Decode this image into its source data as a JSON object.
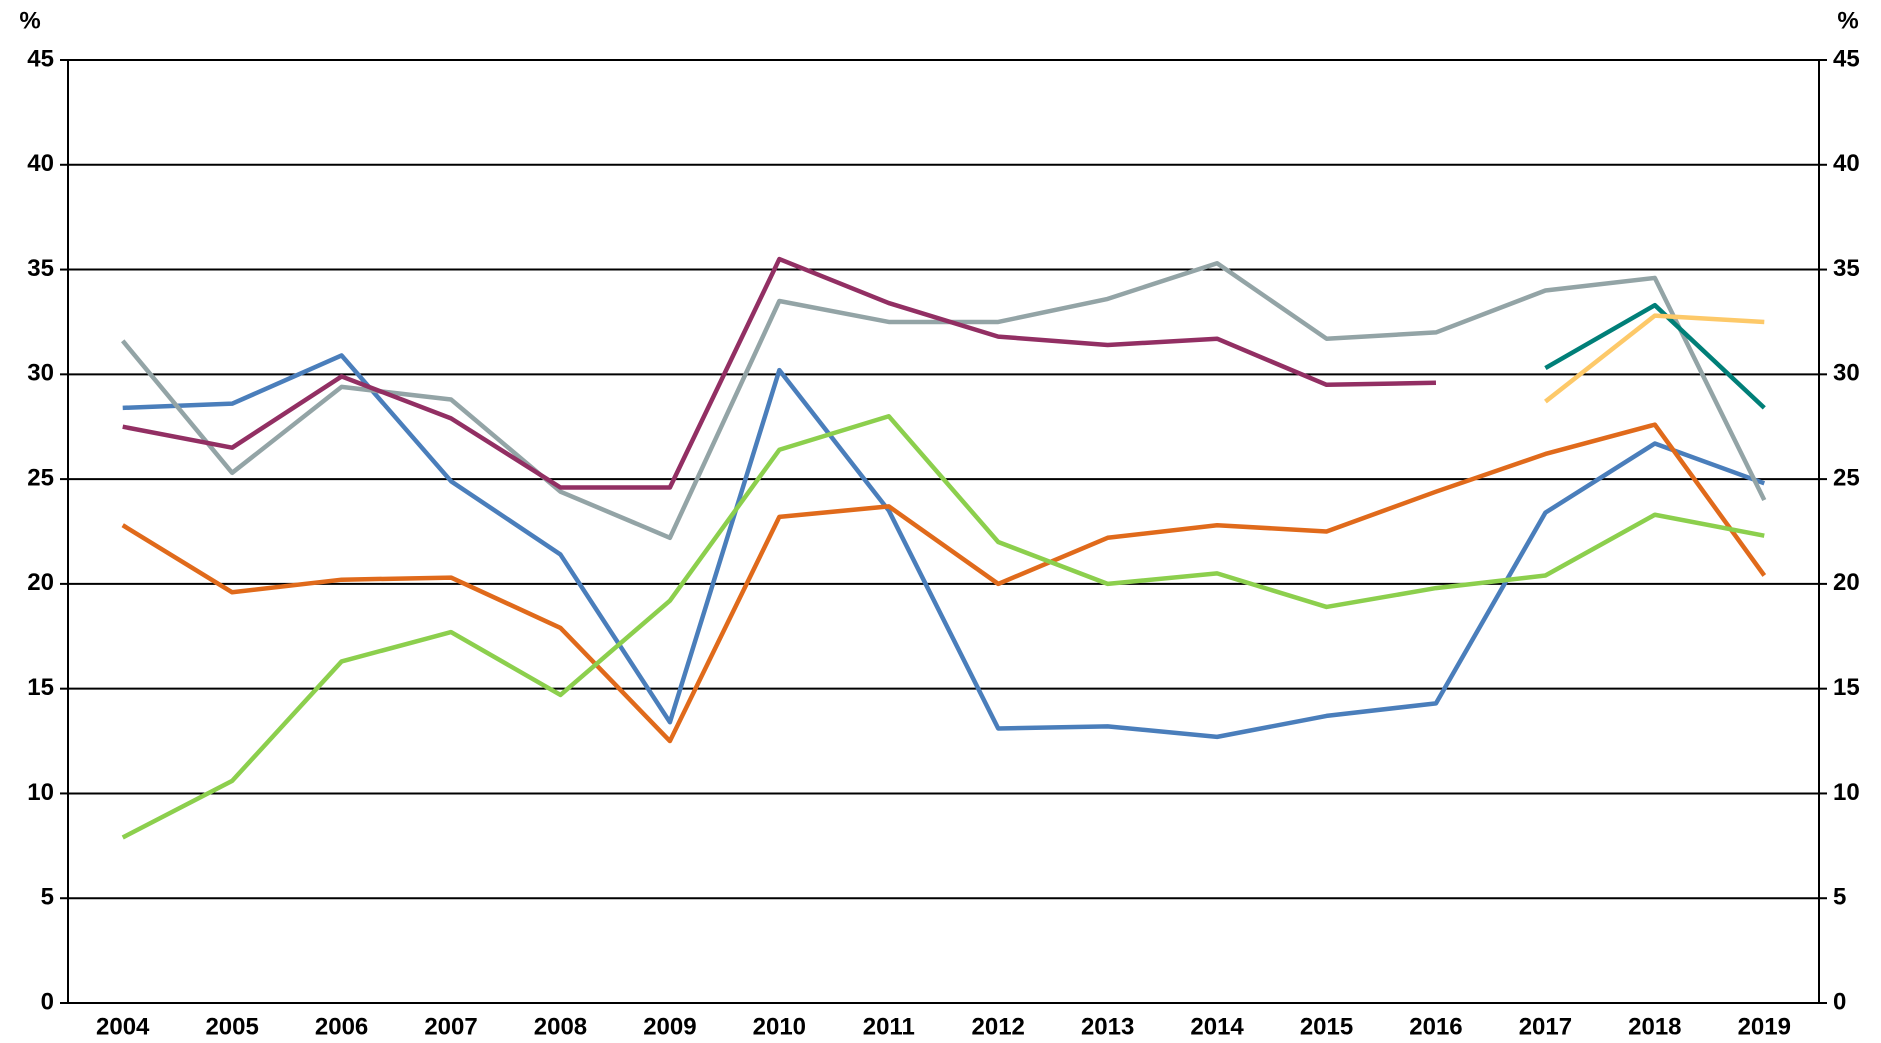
{
  "chart_data": {
    "type": "line",
    "y_label": "%",
    "y2_label": "%",
    "categories": [
      "2004",
      "2005",
      "2006",
      "2007",
      "2008",
      "2009",
      "2010",
      "2011",
      "2012",
      "2013",
      "2014",
      "2015",
      "2016",
      "2017",
      "2018",
      "2019"
    ],
    "series": [
      {
        "color": "#4a7ebb",
        "values": [
          28.4,
          28.6,
          30.9,
          24.9,
          21.4,
          13.4,
          30.2,
          23.5,
          13.1,
          13.2,
          12.7,
          13.7,
          14.3,
          23.4,
          26.7,
          24.8
        ]
      },
      {
        "color": "#93a4a6",
        "values": [
          31.6,
          25.3,
          29.4,
          28.8,
          24.4,
          22.2,
          33.5,
          32.5,
          32.5,
          33.6,
          35.3,
          31.7,
          32.0,
          34.0,
          34.6,
          24.0
        ]
      },
      {
        "color": "#922f63",
        "values": [
          27.5,
          26.5,
          29.9,
          27.9,
          24.6,
          24.6,
          35.5,
          33.4,
          31.8,
          31.4,
          31.7,
          29.5,
          29.6,
          null,
          null,
          null
        ]
      },
      {
        "color": "#e06a1b",
        "values": [
          22.8,
          19.6,
          20.2,
          20.3,
          17.9,
          12.5,
          23.2,
          23.7,
          20.0,
          22.2,
          22.8,
          22.5,
          24.4,
          26.2,
          27.6,
          20.4
        ]
      },
      {
        "color": "#8ccf4d",
        "values": [
          7.9,
          10.6,
          16.3,
          17.7,
          14.7,
          19.2,
          26.4,
          28.0,
          22.0,
          20.0,
          20.5,
          18.9,
          19.8,
          20.4,
          23.3,
          22.3
        ]
      },
      {
        "color": "#007f78",
        "values": [
          null,
          null,
          null,
          null,
          null,
          null,
          null,
          null,
          null,
          null,
          null,
          null,
          null,
          30.3,
          33.3,
          28.4
        ]
      },
      {
        "color": "#fdc969",
        "values": [
          null,
          null,
          null,
          null,
          null,
          null,
          null,
          null,
          null,
          null,
          null,
          null,
          null,
          28.7,
          32.8,
          32.5
        ]
      }
    ],
    "ylim": [
      0,
      45
    ],
    "yticks": [
      0,
      5,
      10,
      15,
      20,
      25,
      30,
      35,
      40,
      45
    ],
    "y2lim": [
      0,
      45
    ],
    "y2ticks": [
      0,
      5,
      10,
      15,
      20,
      25,
      30,
      35,
      40,
      45
    ],
    "grid": true
  }
}
